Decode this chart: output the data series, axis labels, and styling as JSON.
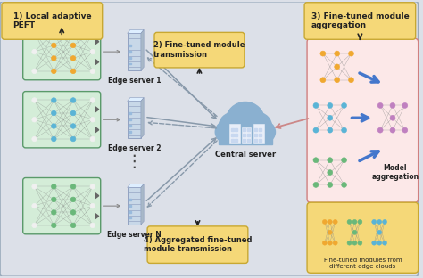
{
  "bg_color": "#dce0e8",
  "label1": "1) Local adaptive\nPEFT",
  "label2": "2) Fine-tuned module\ntransmission",
  "label3": "3) Fine-tuned module\naggregation",
  "label4": "4) Aggregated fine-tuned\nmodule transmission",
  "edge_server_labels": [
    "Edge server 1",
    "Edge server 2",
    "Edge server N"
  ],
  "central_server_label": "Central server",
  "model_aggregation_label": "Model\naggregation",
  "fine_tuned_modules_label": "Fine-tuned modules from\ndifferent edge clouds",
  "nn_orange": "#f0a830",
  "nn_blue": "#5ab4d6",
  "nn_green": "#6ab87a",
  "nn_purple": "#c080c0",
  "nn_white": "#f0f0f0",
  "yellow_box_color": "#f5d878",
  "yellow_box_edge": "#c8a832",
  "green_box_color": "#d4edd8",
  "green_box_edge": "#5a9a6a",
  "pink_box_color": "#fce8e8",
  "pink_box_edge": "#d08080",
  "cloud_color": "#8ab0d0",
  "server_color": "#c0d0e0",
  "arrow_solid": "#8899aa",
  "arrow_dashed": "#8899aa",
  "blue_arrow": "#4477cc"
}
